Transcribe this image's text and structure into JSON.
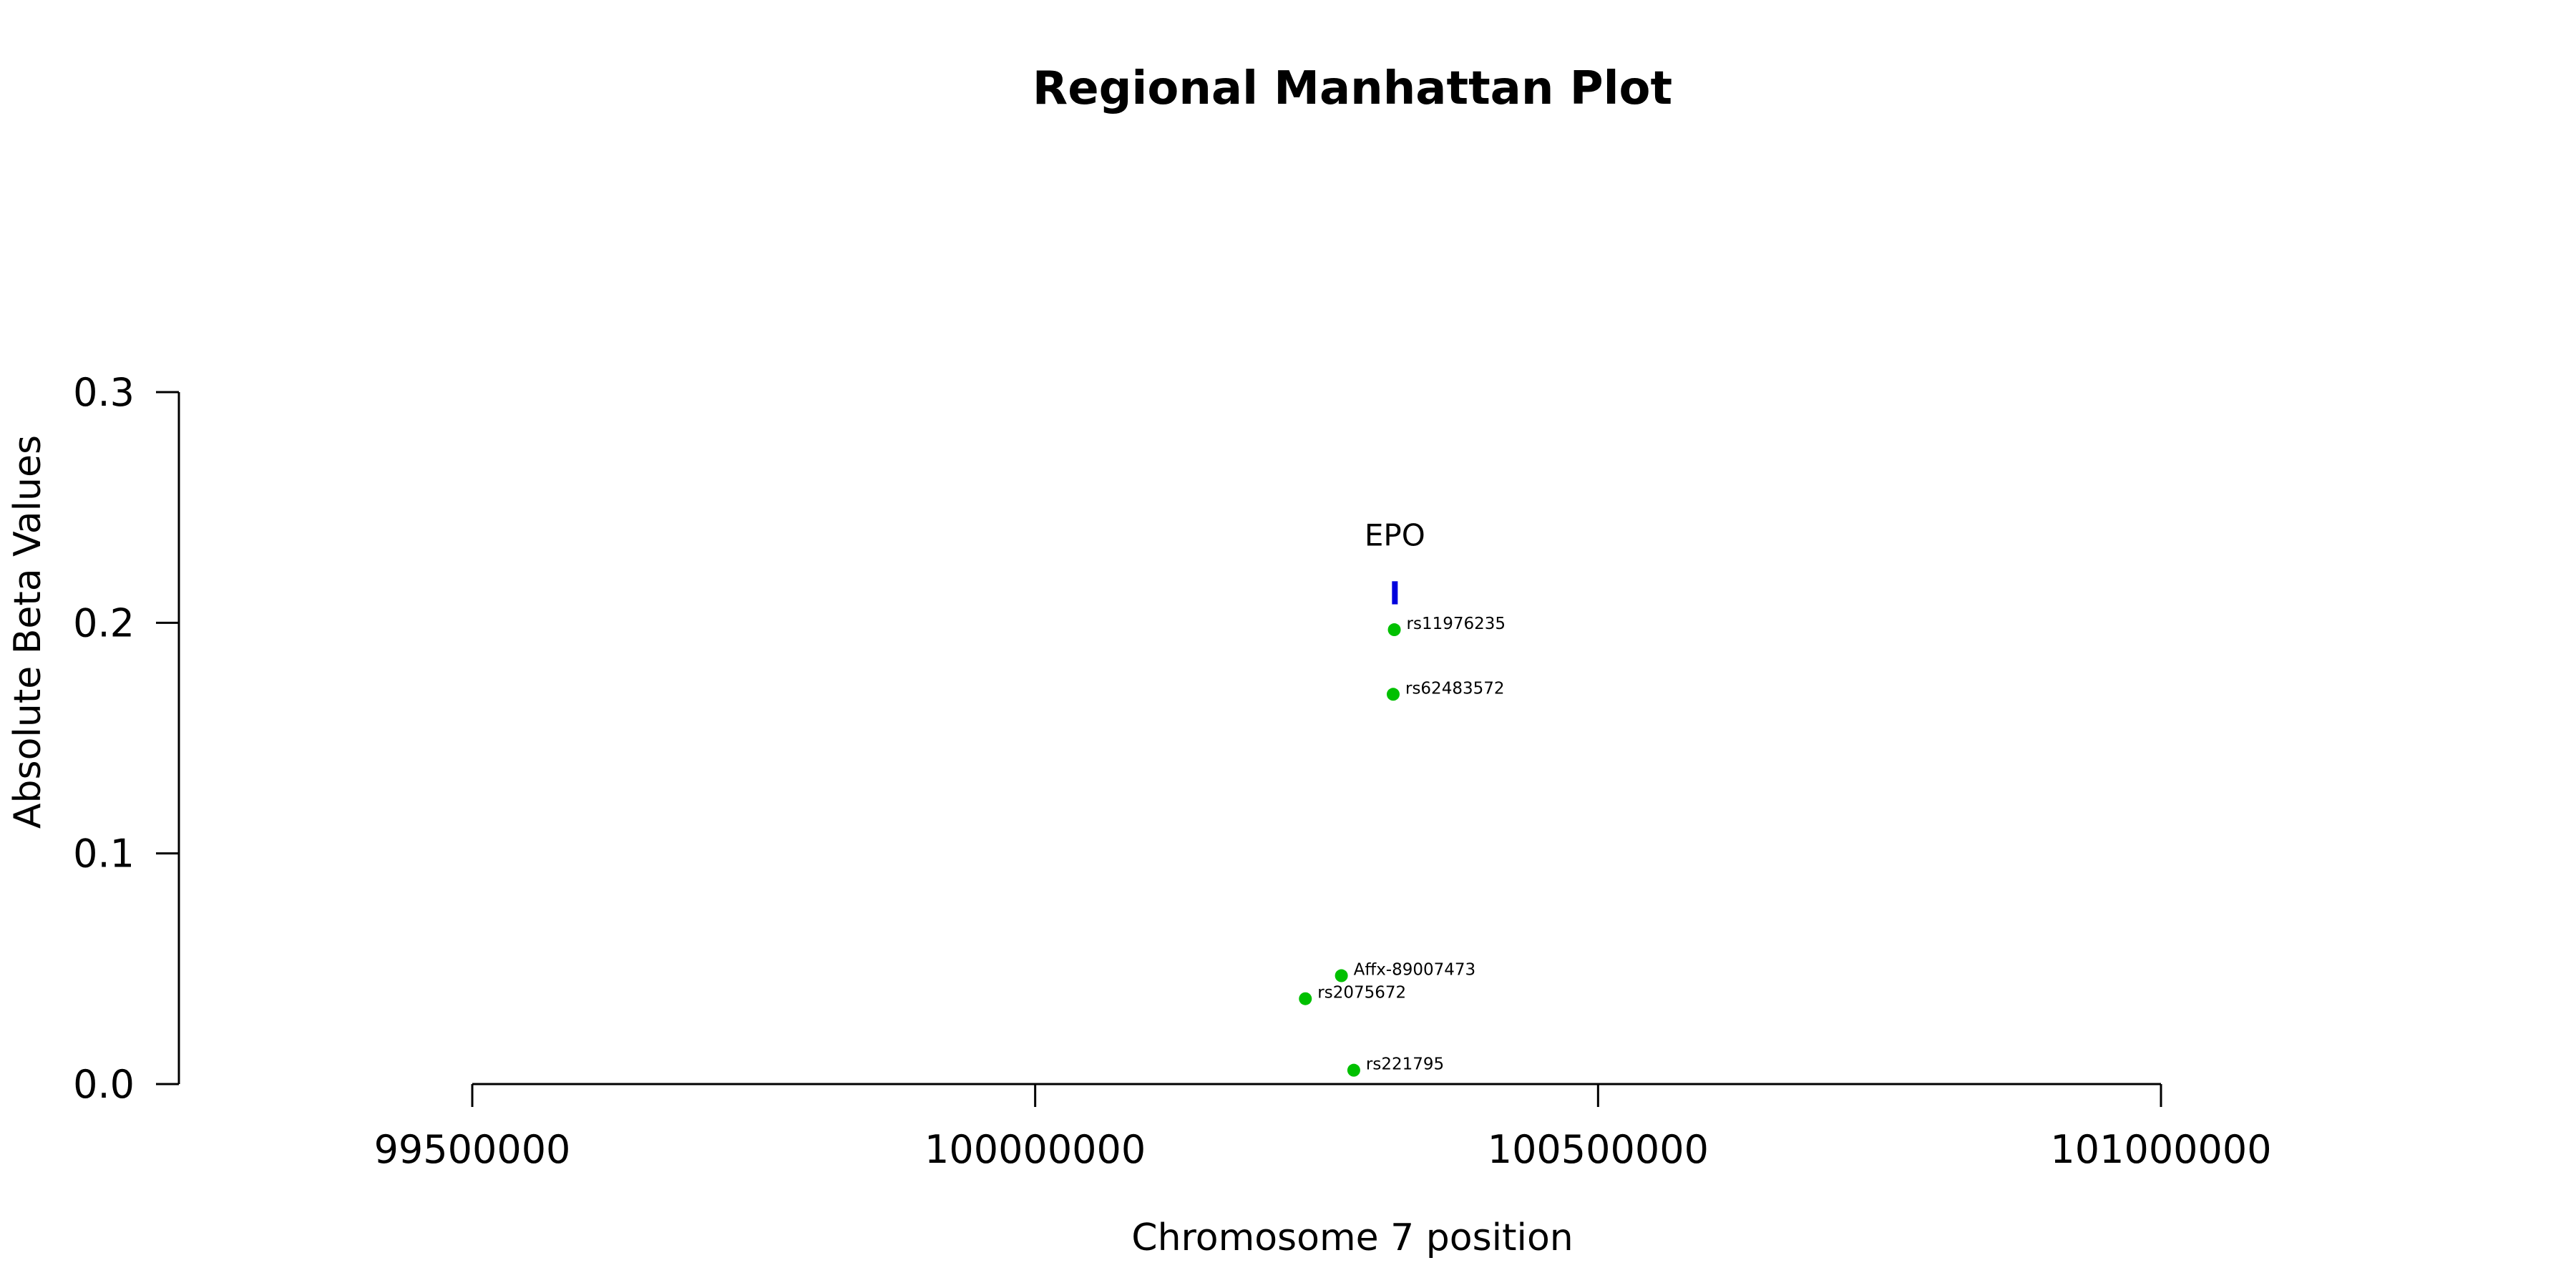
{
  "chart_data": {
    "type": "scatter",
    "title": "Regional Manhattan Plot",
    "xlabel": "Chromosome 7 position",
    "ylabel": "Absolute Beta Values",
    "xlim": [
      99500000,
      101000000
    ],
    "ylim": [
      0.0,
      0.3
    ],
    "x_ticks": [
      99500000,
      100000000,
      100500000,
      101000000
    ],
    "x_tick_labels": [
      "99500000",
      "100000000",
      "100500000",
      "101000000"
    ],
    "y_ticks": [
      0.0,
      0.1,
      0.2,
      0.3
    ],
    "y_tick_labels": [
      "0.0",
      "0.1",
      "0.2",
      "0.3"
    ],
    "grid": false,
    "point_color": "#00c000",
    "gene_color": "#0000dd",
    "points": [
      {
        "label": "rs11976235",
        "x": 100319000,
        "y": 0.197
      },
      {
        "label": "rs62483572",
        "x": 100318000,
        "y": 0.169
      },
      {
        "label": "Affx-89007473",
        "x": 100272000,
        "y": 0.047
      },
      {
        "label": "rs2075672",
        "x": 100240000,
        "y": 0.037
      },
      {
        "label": "rs221795",
        "x": 100283000,
        "y": 0.006
      }
    ],
    "genes": [
      {
        "name": "EPO",
        "start": 100318000,
        "end": 100321000,
        "y_low": 0.208,
        "y_high": 0.218
      }
    ]
  }
}
